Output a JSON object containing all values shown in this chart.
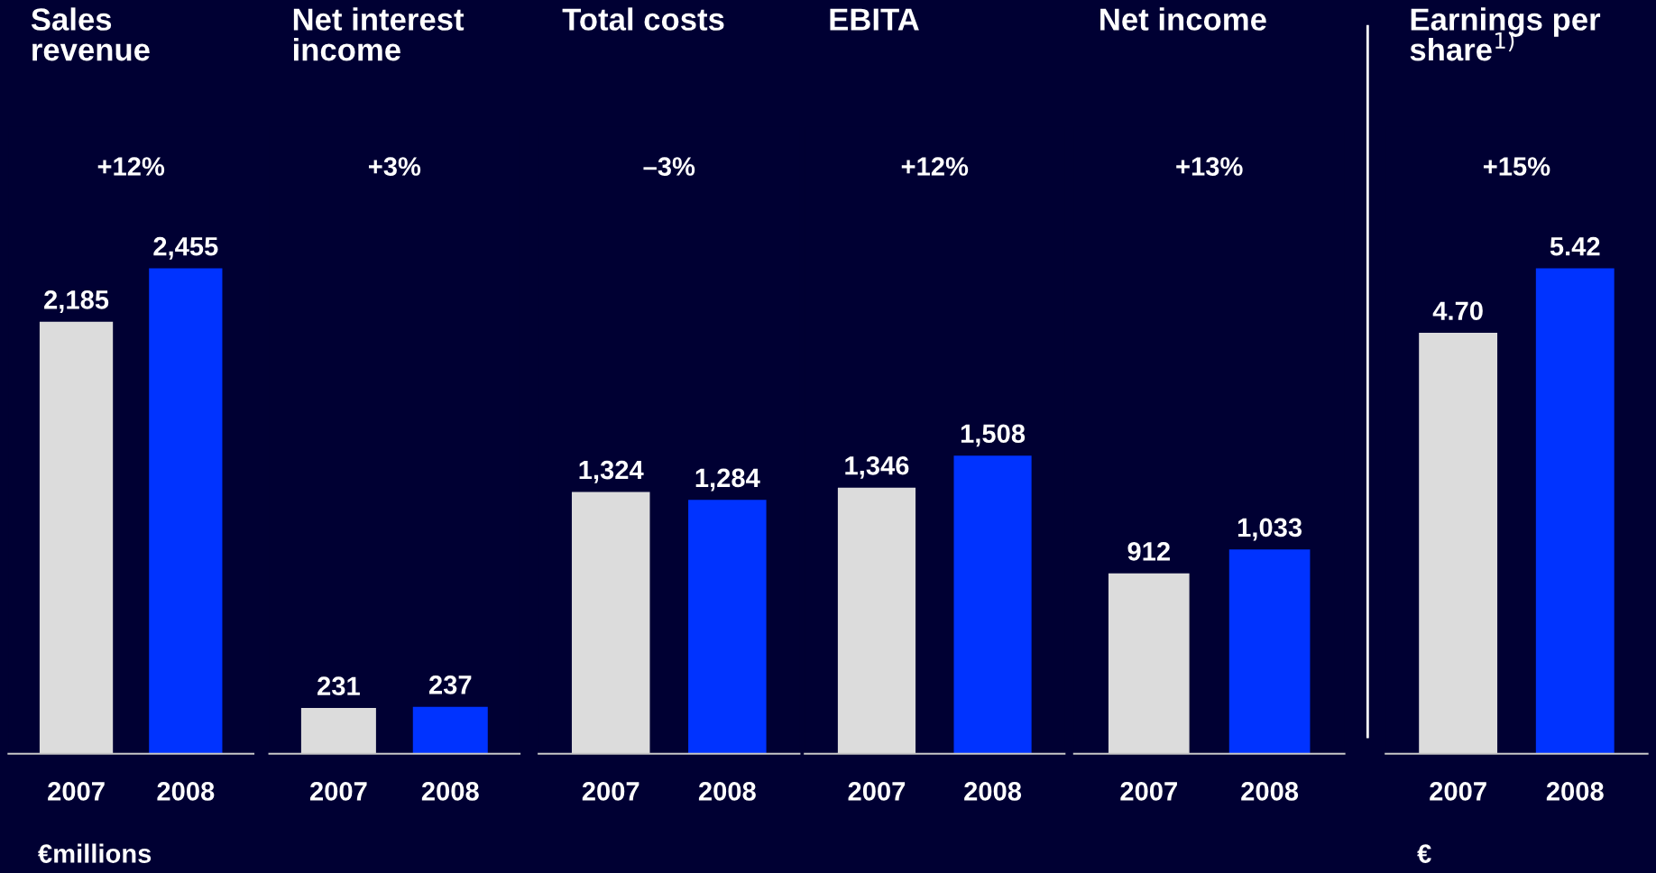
{
  "chart_data": [
    {
      "type": "bar",
      "title": "Sales\nrevenue",
      "categories": [
        "2007",
        "2008"
      ],
      "values": [
        2185,
        2455
      ],
      "colors": [
        "#dcdcdc",
        "#0033ff"
      ],
      "value_labels": [
        "2,185",
        "2,455"
      ],
      "tick_labels": "x",
      "annotations": [
        "+12%",
        "€millions"
      ]
    },
    {
      "type": "bar",
      "title": "Net interest\nincome",
      "categories": [
        "2007",
        "2008"
      ],
      "values": [
        231,
        237
      ],
      "colors": [
        "#dcdcdc",
        "#0033ff"
      ],
      "value_labels": [
        "231",
        "237"
      ],
      "tick_labels": "x",
      "annotations": [
        "+3%"
      ]
    },
    {
      "type": "bar",
      "title": "Total costs",
      "categories": [
        "2007",
        "2008"
      ],
      "values": [
        1324,
        1284
      ],
      "colors": [
        "#dcdcdc",
        "#0033ff"
      ],
      "value_labels": [
        "1,324",
        "1,284"
      ],
      "tick_labels": "x",
      "annotations": [
        "–3%"
      ]
    },
    {
      "type": "bar",
      "title": "EBITA",
      "categories": [
        "2007",
        "2008"
      ],
      "values": [
        1346,
        1508
      ],
      "colors": [
        "#dcdcdc",
        "#0033ff"
      ],
      "value_labels": [
        "1,346",
        "1,508"
      ],
      "tick_labels": "x",
      "annotations": [
        "+12%"
      ]
    },
    {
      "type": "bar",
      "title": "Net income",
      "categories": [
        "2007",
        "2008"
      ],
      "values": [
        912,
        1033
      ],
      "colors": [
        "#dcdcdc",
        "#0033ff"
      ],
      "value_labels": [
        "912",
        "1,033"
      ],
      "tick_labels": "x",
      "annotations": [
        "+13%"
      ]
    },
    {
      "type": "bar",
      "title": "Earnings per\nshare$^{1)}$",
      "categories": [
        "2007",
        "2008"
      ],
      "values": [
        4.7,
        5.42
      ],
      "colors": [
        "#dcdcdc",
        "#0033ff"
      ],
      "value_labels": [
        "4.70",
        "5.42"
      ],
      "tick_labels": "x",
      "annotations": [
        "+15%",
        "€"
      ]
    }
  ]
}
